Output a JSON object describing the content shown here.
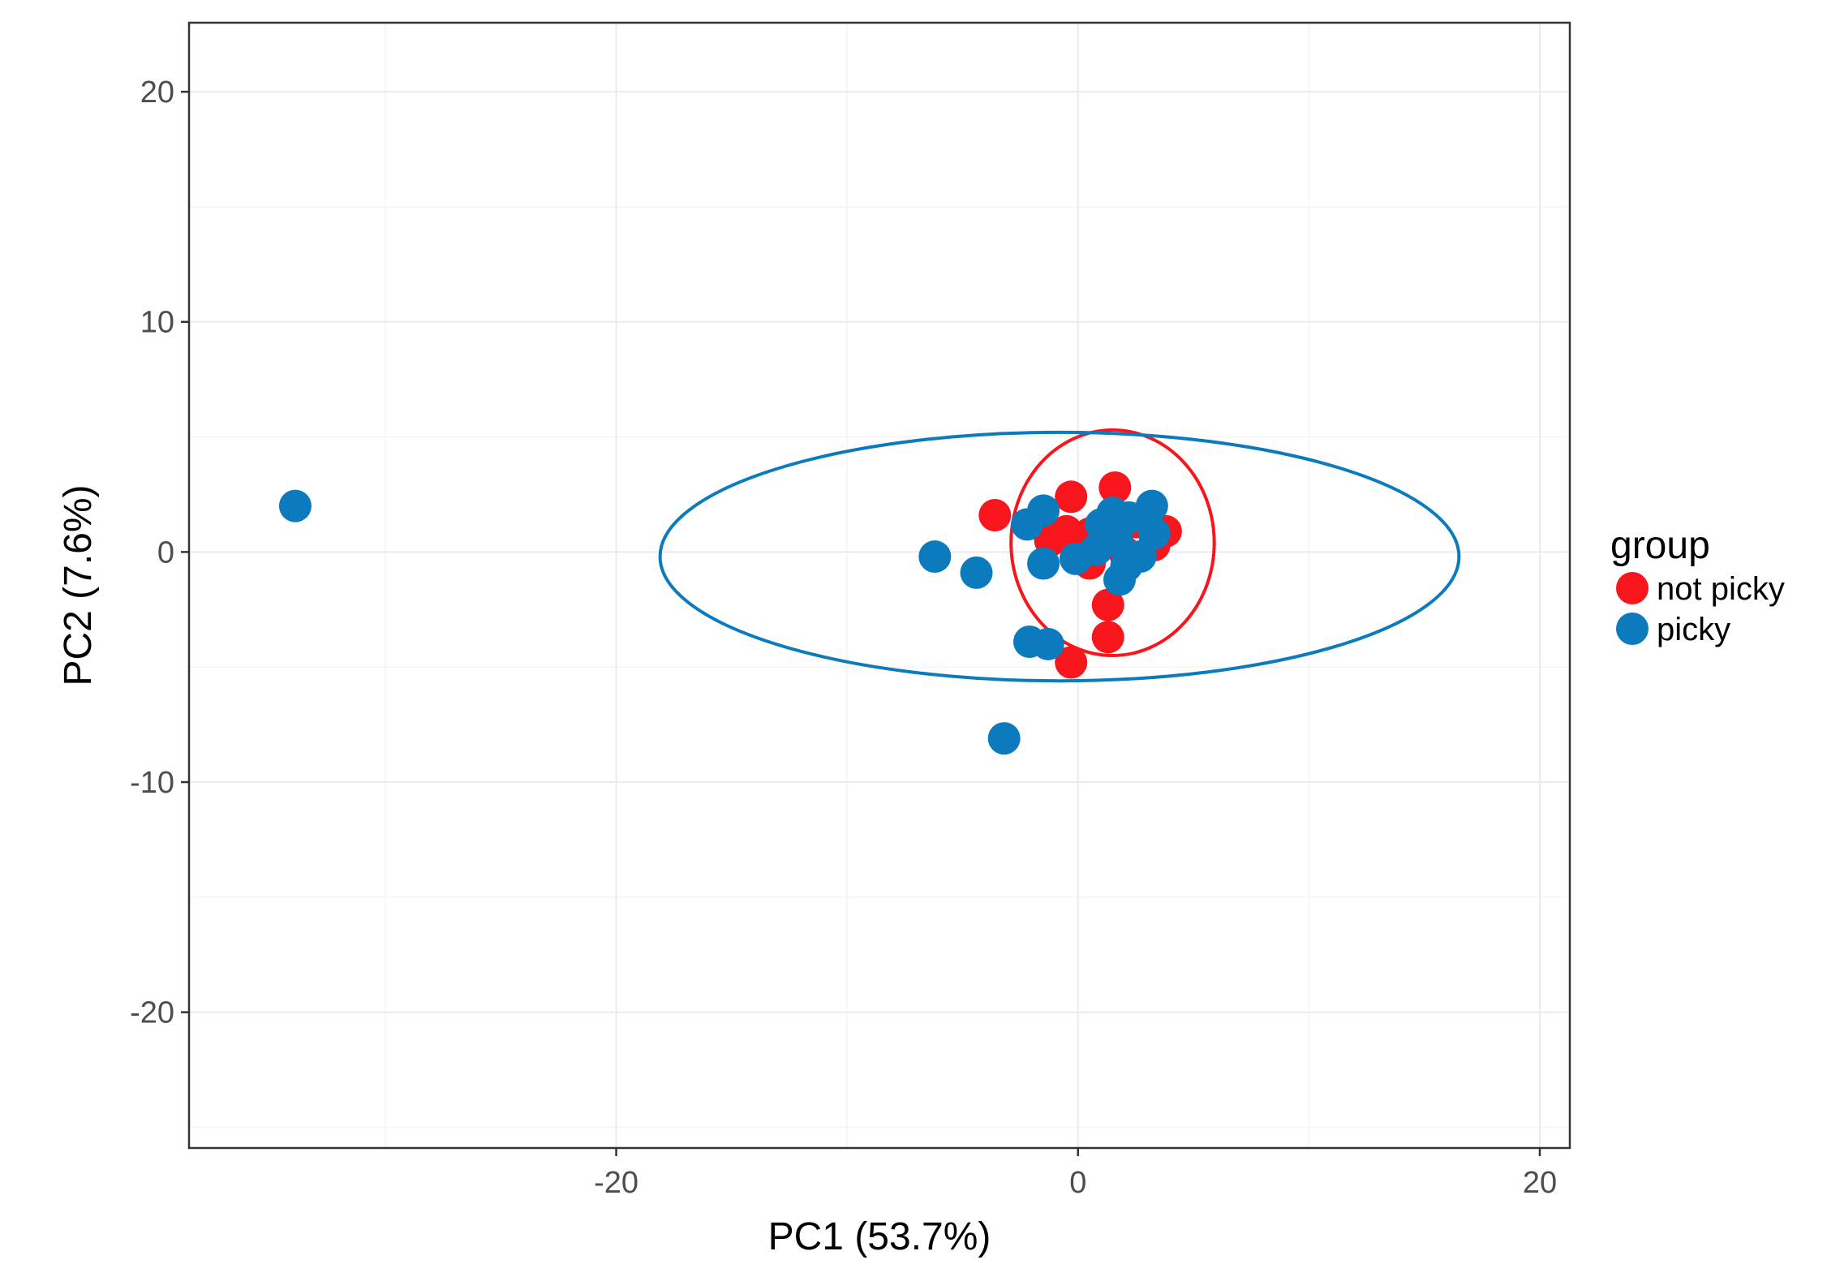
{
  "chart_data": {
    "type": "scatter",
    "title": "",
    "xlabel": "PC1 (53.7%)",
    "ylabel": "PC2 (7.6%)",
    "xlim": [
      -38.5,
      21.3
    ],
    "ylim": [
      -25.9,
      23
    ],
    "x_ticks": [
      -20,
      0,
      20
    ],
    "x_tick_labels": [
      "-20",
      "0",
      "20"
    ],
    "y_ticks": [
      -20,
      -10,
      0,
      10,
      20
    ],
    "y_tick_labels": [
      "-20",
      "-10",
      "0",
      "10",
      "20"
    ],
    "grid": true,
    "legend": {
      "title": "group",
      "placement": "right",
      "entries": [
        {
          "label": "not picky",
          "color": "#f8151b"
        },
        {
          "label": "picky",
          "color": "#0c7bbd"
        }
      ]
    },
    "series": [
      {
        "name": "not picky",
        "color": "#f8151b",
        "points": [
          [
            -3.6,
            1.6
          ],
          [
            -0.3,
            2.4
          ],
          [
            1.6,
            2.8
          ],
          [
            -1.2,
            0.5
          ],
          [
            -0.5,
            0.9
          ],
          [
            0.8,
            0.3
          ],
          [
            2.5,
            1.3
          ],
          [
            3.8,
            0.9
          ],
          [
            3.3,
            0.3
          ],
          [
            1.3,
            -2.3
          ],
          [
            1.3,
            -3.7
          ],
          [
            -0.3,
            -4.8
          ],
          [
            0.5,
            0.8
          ],
          [
            2.0,
            0.0
          ],
          [
            0.5,
            -0.5
          ]
        ],
        "ellipse": {
          "cx": 1.5,
          "cy": 0.4,
          "rx": 4.4,
          "ry": 4.9
        }
      },
      {
        "name": "picky",
        "color": "#0c7bbd",
        "points": [
          [
            -33.9,
            2.0
          ],
          [
            -6.2,
            -0.2
          ],
          [
            -4.4,
            -0.9
          ],
          [
            -2.2,
            1.2
          ],
          [
            -1.5,
            1.8
          ],
          [
            -1.5,
            -0.5
          ],
          [
            -0.1,
            -0.3
          ],
          [
            0.8,
            0.1
          ],
          [
            1.0,
            1.2
          ],
          [
            1.5,
            1.7
          ],
          [
            2.2,
            1.5
          ],
          [
            3.2,
            2.0
          ],
          [
            3.3,
            0.8
          ],
          [
            2.7,
            -0.2
          ],
          [
            1.8,
            -1.2
          ],
          [
            -2.1,
            -3.9
          ],
          [
            -1.3,
            -4.0
          ],
          [
            -3.2,
            -8.1
          ],
          [
            1.7,
            0.5
          ],
          [
            2.1,
            -0.6
          ]
        ],
        "ellipse": {
          "cx": -0.8,
          "cy": -0.2,
          "rx": 17.3,
          "ry": 5.4
        }
      }
    ]
  }
}
